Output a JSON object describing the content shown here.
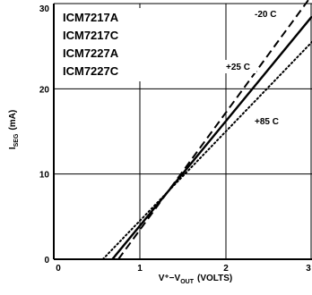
{
  "chart_data": {
    "type": "line",
    "title": "",
    "xlabel": "V⁺−V",
    "xlabel_sub": "OUT",
    "xlabel_units": "(VOLTS)",
    "ylabel": "I",
    "ylabel_sub": "SEG",
    "ylabel_units": "(mA)",
    "xlim": [
      0,
      3
    ],
    "ylim": [
      0,
      30
    ],
    "xticks": [
      "0",
      "1",
      "2",
      "3"
    ],
    "yticks": [
      "0",
      "10",
      "20",
      "30"
    ],
    "grid": true,
    "legend_block": [
      "ICM7217A",
      "ICM7217C",
      "ICM7227A",
      "ICM7227C"
    ],
    "series": [
      {
        "name": "-20 C",
        "dash": "dashed",
        "x": [
          0.75,
          3.0
        ],
        "y": [
          0,
          31
        ]
      },
      {
        "name": "+25 C",
        "dash": "solid",
        "x": [
          0.68,
          3.0
        ],
        "y": [
          0,
          28.5
        ]
      },
      {
        "name": "+85 C",
        "dash": "dotted",
        "x": [
          0.57,
          3.0
        ],
        "y": [
          0,
          25.5
        ]
      }
    ],
    "annotations": [
      "-20 C",
      "+25 C",
      "+85 C"
    ],
    "colors": {
      "line": "#000000",
      "grid": "#000000",
      "background": "#ffffff"
    }
  }
}
